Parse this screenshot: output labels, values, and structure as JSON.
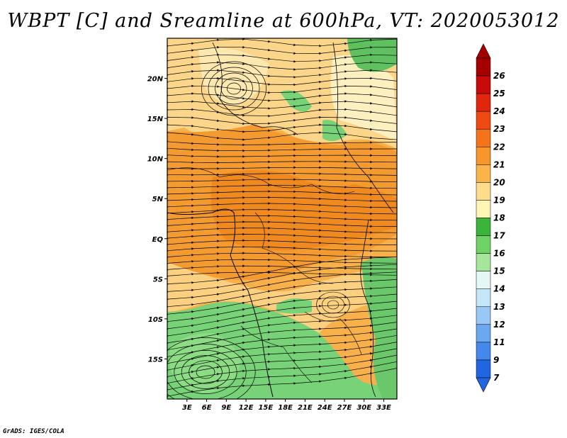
{
  "title": "WBPT [C] and Sreamline at 600hPa, VT: 2020053012",
  "footer": "GrADS: IGES/COLA",
  "map": {
    "lon_labels": [
      "3E",
      "6E",
      "9E",
      "12E",
      "15E",
      "18E",
      "21E",
      "24E",
      "27E",
      "30E",
      "33E"
    ],
    "lon_values": [
      3,
      6,
      9,
      12,
      15,
      18,
      21,
      24,
      27,
      30,
      33
    ],
    "lat_labels": [
      "20N",
      "15N",
      "10N",
      "5N",
      "EQ",
      "5S",
      "10S",
      "15S"
    ],
    "lat_values": [
      20,
      15,
      10,
      5,
      0,
      -5,
      -10,
      -15
    ],
    "lon_range": [
      0,
      35
    ],
    "lat_range": [
      -20,
      25
    ]
  },
  "colorbar": {
    "labels": [
      "26",
      "25",
      "24",
      "23",
      "22",
      "21",
      "20",
      "19",
      "18",
      "17",
      "16",
      "15",
      "14",
      "13",
      "12",
      "11",
      "9",
      "7"
    ],
    "colors": [
      "#a50000",
      "#c80a0a",
      "#e1260e",
      "#ee4a12",
      "#f5741a",
      "#f7962a",
      "#fbb44a",
      "#fddc8c",
      "#fdf5b4",
      "#3cb43c",
      "#6ed264",
      "#a6e69a",
      "#e4f7f5",
      "#c4e6f7",
      "#98c8f4",
      "#6ca8f0",
      "#4488ec",
      "#2066e0"
    ]
  },
  "colors": {
    "ocean_green": "#78d278",
    "land_orange": "#f5a038",
    "land_yellow": "#fbd68a",
    "streamline": "#000000"
  }
}
